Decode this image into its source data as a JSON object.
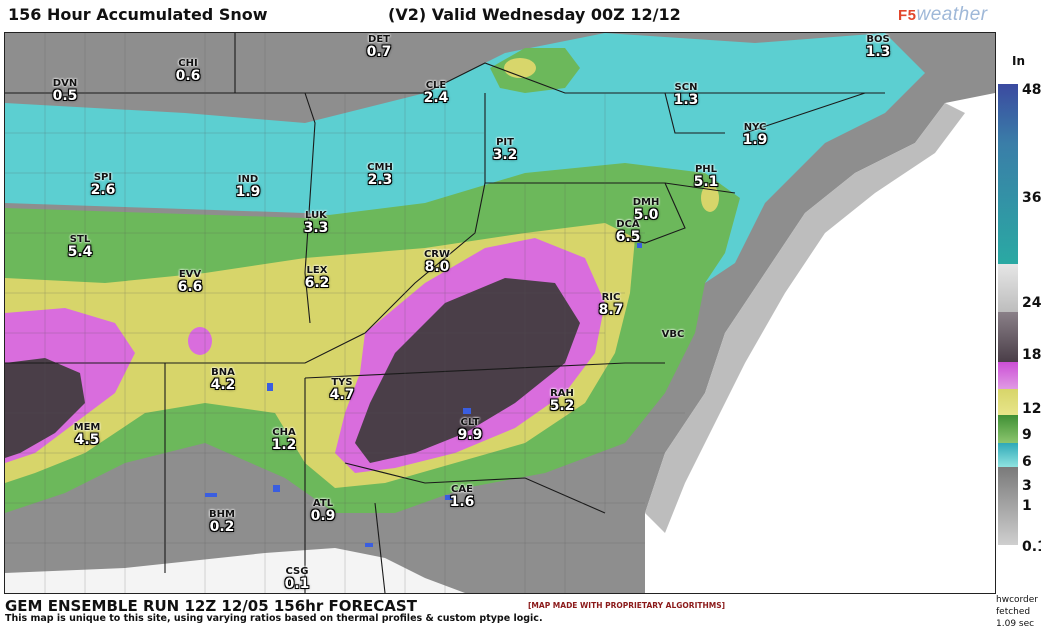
{
  "header": {
    "title": "156 Hour Accumulated Snow",
    "valid": "(V2) Valid Wednesday 00Z 12/12",
    "brand_prefix": "F5",
    "brand_name": "weather"
  },
  "legend": {
    "unit": "In",
    "ticks": [
      "48",
      "36",
      "24",
      "18",
      "12",
      "9",
      "6",
      "3",
      "1",
      "0.1"
    ],
    "colors": {
      "none": "#ffffff",
      "trace": "#9a9a9a",
      "light": "#5fd0d0",
      "moderate": "#6db85c",
      "heavy": "#d7d56a",
      "very_heavy": "#d96ddd",
      "extreme": "#4a3e48",
      "top": "#3e4f9c"
    }
  },
  "cities": [
    {
      "code": "DET",
      "value": "0.7"
    },
    {
      "code": "CHI",
      "value": "0.6"
    },
    {
      "code": "DVN",
      "value": "0.5"
    },
    {
      "code": "CLE",
      "value": "2.4"
    },
    {
      "code": "BOS",
      "value": "1.3"
    },
    {
      "code": "SCN",
      "value": "1.3"
    },
    {
      "code": "NYC",
      "value": "1.9"
    },
    {
      "code": "PIT",
      "value": "3.2"
    },
    {
      "code": "SPI",
      "value": "2.6"
    },
    {
      "code": "IND",
      "value": "1.9"
    },
    {
      "code": "CMH",
      "value": "2.3"
    },
    {
      "code": "PHL",
      "value": "5.1"
    },
    {
      "code": "DMH",
      "value": "5.0"
    },
    {
      "code": "LUK",
      "value": "3.3"
    },
    {
      "code": "DCA",
      "value": "6.5"
    },
    {
      "code": "STL",
      "value": "5.4"
    },
    {
      "code": "CRW",
      "value": "8.0"
    },
    {
      "code": "EVV",
      "value": "6.6"
    },
    {
      "code": "LEX",
      "value": "6.2"
    },
    {
      "code": "RIC",
      "value": "8.7"
    },
    {
      "code": "VBC",
      "value": ""
    },
    {
      "code": "BNA",
      "value": "4.2"
    },
    {
      "code": "TYS",
      "value": "4.7"
    },
    {
      "code": "RAH",
      "value": "5.2"
    },
    {
      "code": "MEM",
      "value": "4.5"
    },
    {
      "code": "CHA",
      "value": "1.2"
    },
    {
      "code": "CLT",
      "value": "9.9"
    },
    {
      "code": "CAE",
      "value": "1.6"
    },
    {
      "code": "ATL",
      "value": "0.9"
    },
    {
      "code": "BHM",
      "value": "0.2"
    },
    {
      "code": "CSG",
      "value": "0.1"
    }
  ],
  "footer": {
    "run": "GEM ENSEMBLE RUN 12Z 12/05 156hr FORECAST",
    "note": "This map is unique to this site, using varying ratios based on thermal profiles & custom ptype logic.",
    "proprietary": "[MAP MADE WITH PROPRIETARY ALGORITHMS]",
    "credit_user": "hwcorder",
    "credit_fetched": "fetched",
    "credit_time": "1.09 sec"
  }
}
